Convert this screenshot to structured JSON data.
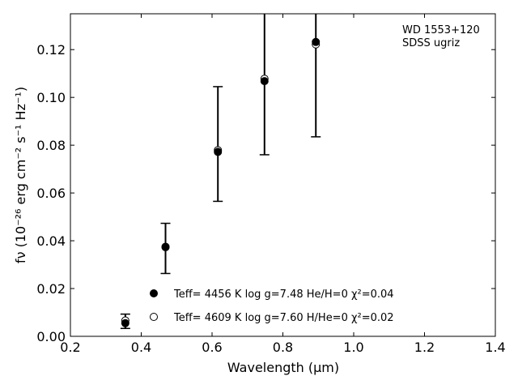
{
  "chart_data": {
    "type": "scatter",
    "title": "",
    "annotation": [
      "WD 1553+120",
      "SDSS ugriz"
    ],
    "xlabel": "Wavelength (μm)",
    "ylabel": "fν (10⁻²⁶ erg cm⁻² s⁻¹ Hz⁻¹)",
    "xlim": [
      0.2,
      1.4
    ],
    "ylim": [
      0.0,
      0.135
    ],
    "xticks": [
      0.2,
      0.4,
      0.6,
      0.8,
      1.0,
      1.2,
      1.4
    ],
    "xtick_labels": [
      "0.2",
      "0.4",
      "0.6",
      "0.8",
      "1.0",
      "1.2",
      "1.4"
    ],
    "yticks": [
      0.0,
      0.02,
      0.04,
      0.06,
      0.08,
      0.1,
      0.12
    ],
    "ytick_labels": [
      "0.00",
      "0.02",
      "0.04",
      "0.06",
      "0.08",
      "0.10",
      "0.12"
    ],
    "grid": false,
    "legend_position": "lower-center",
    "observed": {
      "x": [
        0.3551,
        0.4686,
        0.6165,
        0.7481,
        0.8931
      ],
      "y": [
        0.0063,
        0.0368,
        0.0805,
        0.108,
        0.1235
      ],
      "yerr": [
        0.003,
        0.0105,
        0.024,
        0.032,
        0.04
      ]
    },
    "series": [
      {
        "name": "Teff= 4456 K log g=7.48 He/H=0 χ²=0.04",
        "marker": "filled-circle",
        "x": [
          0.3551,
          0.4686,
          0.6165,
          0.7481,
          0.8931
        ],
        "y": [
          0.0055,
          0.0373,
          0.0772,
          0.1068,
          0.1232
        ]
      },
      {
        "name": "Teff= 4609 K log g=7.60 H/He=0 χ²=0.02",
        "marker": "open-circle",
        "x": [
          0.3551,
          0.4686,
          0.6165,
          0.7481,
          0.8931
        ],
        "y": [
          0.0066,
          0.0375,
          0.0779,
          0.1078,
          0.1222
        ]
      }
    ]
  }
}
